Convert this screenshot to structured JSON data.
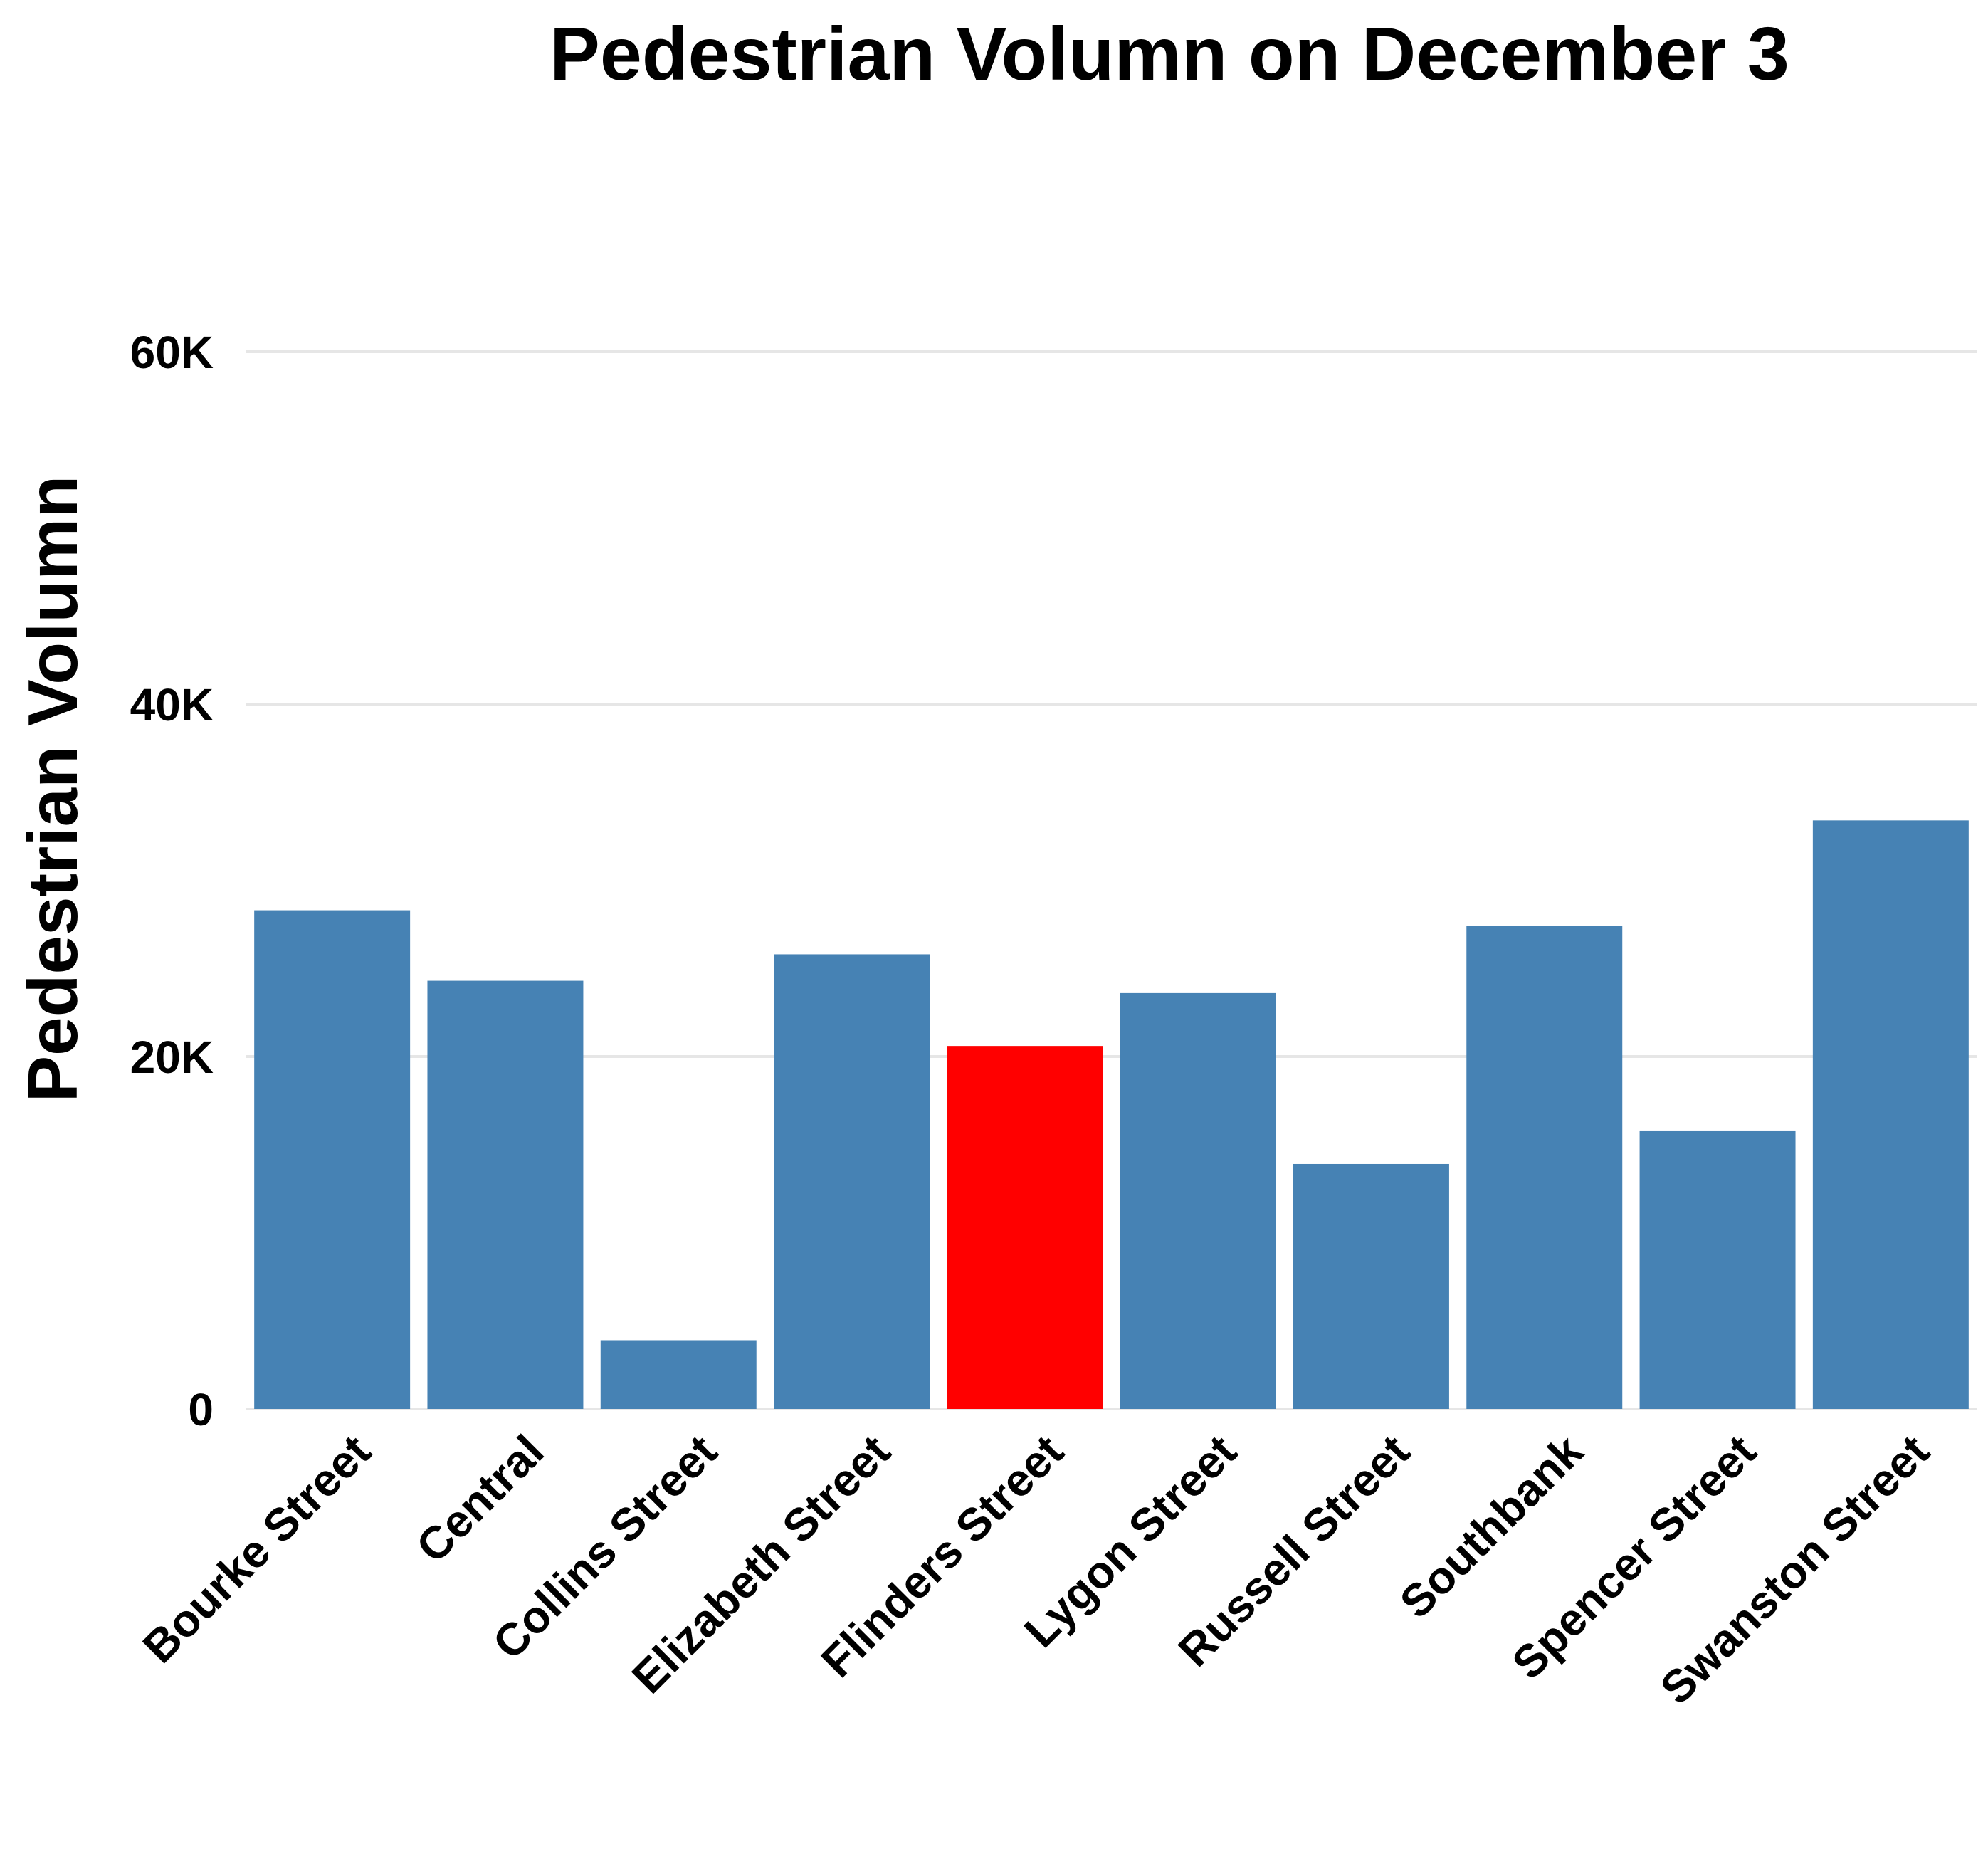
{
  "chart_data": {
    "type": "bar",
    "title": "Pedestrian Volumn on December 3",
    "xlabel": "",
    "ylabel": "Pedestrian Volumn",
    "ylim": [
      0,
      60000
    ],
    "yticks": [
      0,
      20000,
      40000,
      60000
    ],
    "ytick_labels": [
      "0",
      "20K",
      "40K",
      "60K"
    ],
    "grid": "horizontal",
    "categories": [
      "Bourke Street",
      "Central",
      "Collins Street",
      "Elizabeth Street",
      "Flinders Street",
      "Lygon Street",
      "Russell Street",
      "Southbank",
      "Spencer Street",
      "Swanston Street"
    ],
    "values": [
      28300,
      24300,
      3900,
      25800,
      20600,
      23600,
      13900,
      27400,
      15800,
      33400
    ],
    "highlight_category": "Flinders Street",
    "colors": {
      "default": "#4682b4",
      "highlight": "#ff0000"
    }
  }
}
